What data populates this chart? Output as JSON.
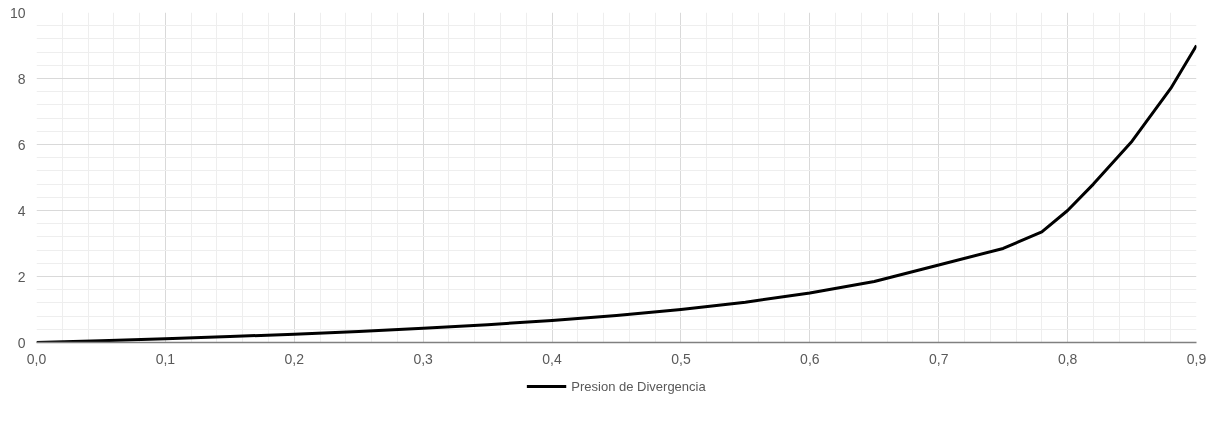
{
  "chart_data": {
    "type": "line",
    "x": [
      0,
      0.05,
      0.1,
      0.15,
      0.2,
      0.25,
      0.3,
      0.35,
      0.4,
      0.45,
      0.5,
      0.55,
      0.6,
      0.65,
      0.7,
      0.75,
      0.78,
      0.8,
      0.82,
      0.85,
      0.88,
      0.9
    ],
    "series": [
      {
        "name": "Presion de Divergencia",
        "color": "#000000",
        "values": [
          0,
          0.05,
          0.11,
          0.18,
          0.25,
          0.33,
          0.43,
          0.54,
          0.67,
          0.82,
          1.0,
          1.22,
          1.5,
          1.85,
          2.35,
          2.85,
          3.35,
          4.0,
          4.8,
          6.1,
          7.7,
          9.0
        ]
      }
    ],
    "xlim": [
      0,
      0.9
    ],
    "ylim": [
      0,
      10
    ],
    "xticks": [
      {
        "value": 0,
        "label": "0,0"
      },
      {
        "value": 0.1,
        "label": "0,1"
      },
      {
        "value": 0.2,
        "label": "0,2"
      },
      {
        "value": 0.3,
        "label": "0,3"
      },
      {
        "value": 0.4,
        "label": "0,4"
      },
      {
        "value": 0.5,
        "label": "0,5"
      },
      {
        "value": 0.6,
        "label": "0,6"
      },
      {
        "value": 0.7,
        "label": "0,7"
      },
      {
        "value": 0.8,
        "label": "0,8"
      },
      {
        "value": 0.9,
        "label": "0,9"
      }
    ],
    "yticks": [
      0,
      2,
      4,
      6,
      8,
      10
    ],
    "grid": true,
    "legend": "bottom",
    "marker": "none",
    "line_style": "solid"
  }
}
